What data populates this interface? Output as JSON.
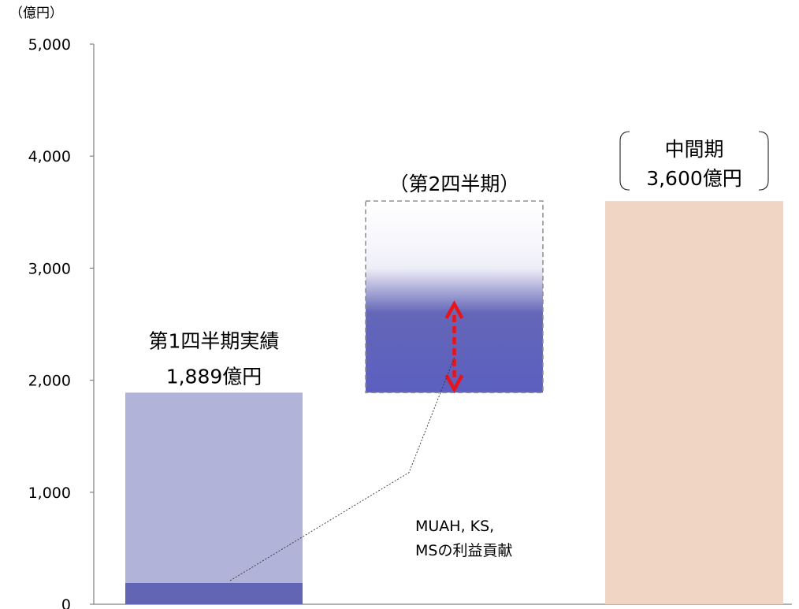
{
  "chart_data": {
    "type": "bar",
    "unit_label": "（億円）",
    "ylim": [
      0,
      5000
    ],
    "y_ticks": [
      "0",
      "1,000",
      "2,000",
      "3,000",
      "4,000",
      "5,000"
    ],
    "y_tick_values": [
      0,
      1000,
      2000,
      3000,
      4000,
      5000
    ],
    "grid": false,
    "colors": {
      "q1_bar": "#b1b3d9",
      "q1_contribution": "#6265b4",
      "q2_bar": "#6466b8",
      "q2_gradient_top": "#ffffff",
      "q2_outline": "#8c8c8c",
      "interim_bar": "#f0d5c5",
      "arrow": "#e8141c"
    },
    "bars": [
      {
        "id": "q1",
        "label_line1": "第1四半期実績",
        "label_line2": "1,889億円",
        "base": 0,
        "value": 1889,
        "contribution": 190
      },
      {
        "id": "q2",
        "label_line1": "（第2四半期）",
        "base": 1889,
        "value": 3600,
        "solid_top": 2600,
        "fade_top": 2600
      },
      {
        "id": "interim",
        "label_line1": "中間期",
        "label_line2": "3,600億円",
        "base": 0,
        "value": 3600
      }
    ],
    "arrow": {
      "from": 1889,
      "to": 2680
    },
    "annotation": {
      "line1": "MUAH, KS,",
      "line2": "MSの利益貢献"
    }
  }
}
